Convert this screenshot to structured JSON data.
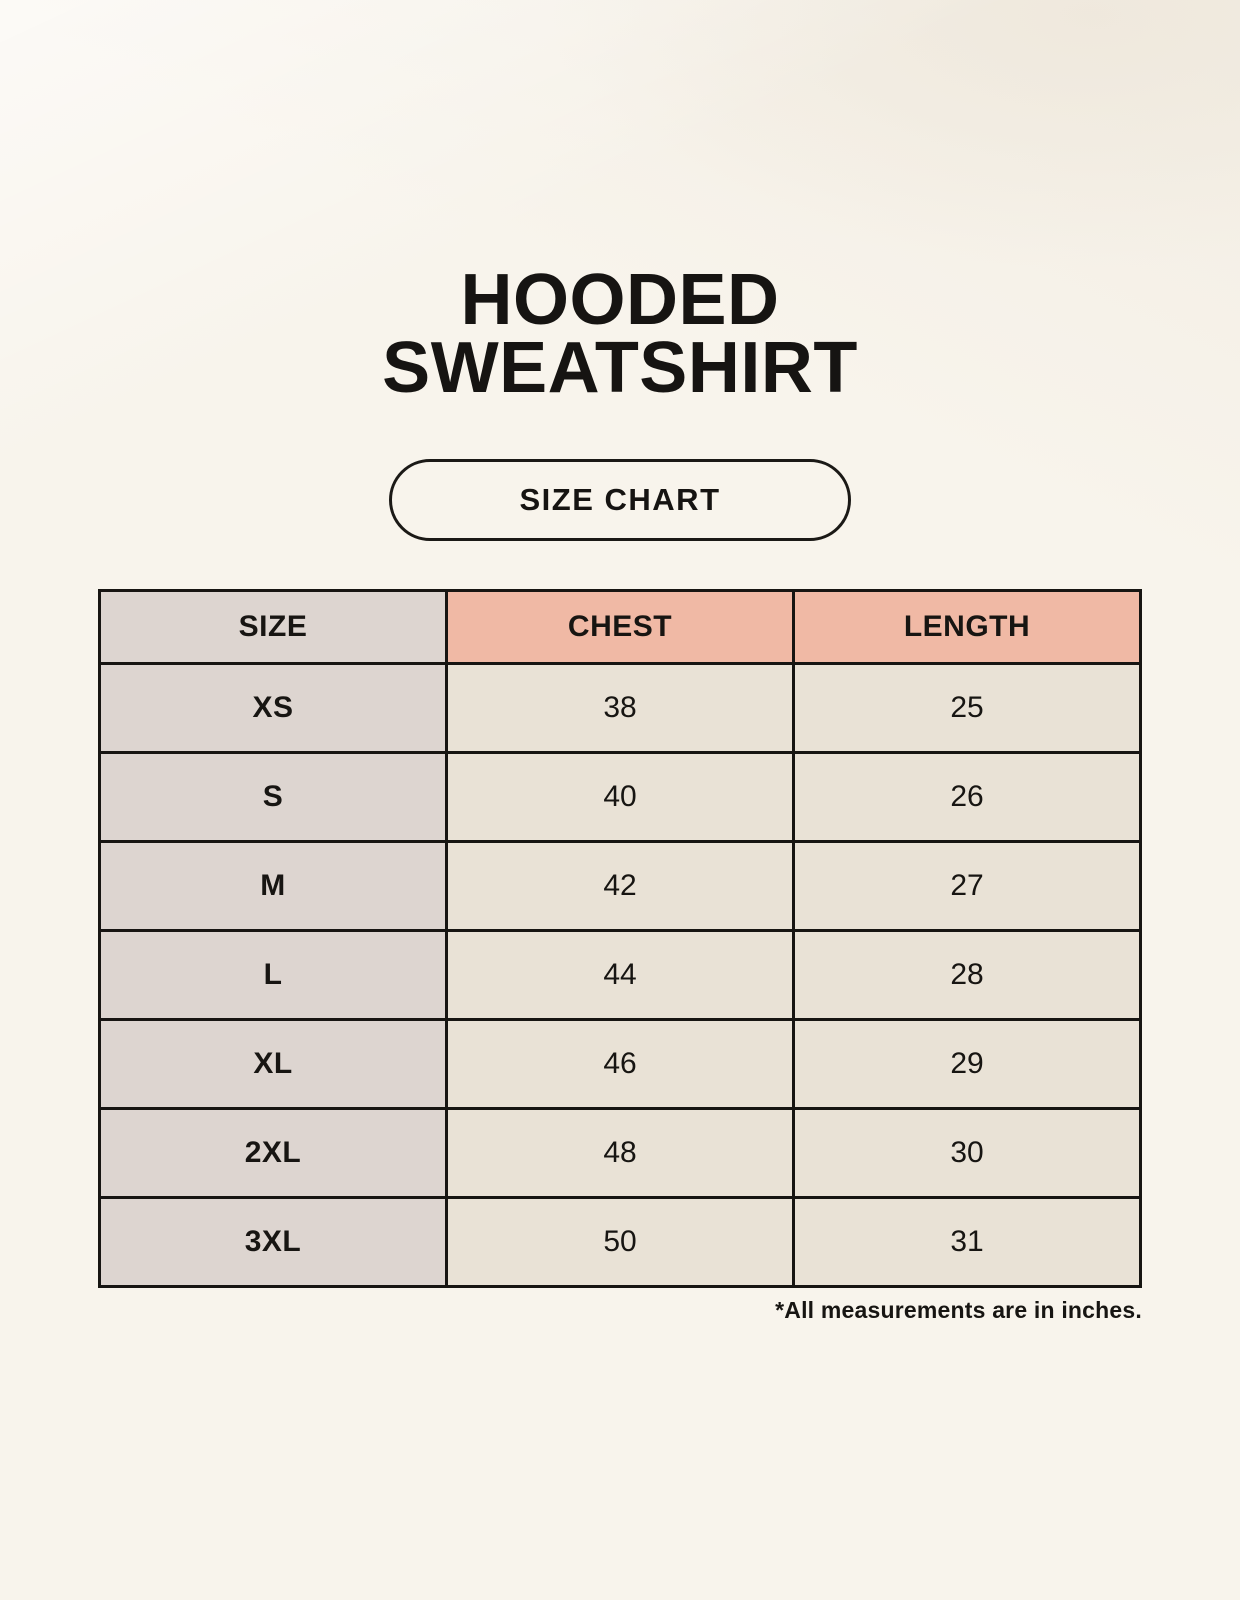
{
  "header": {
    "title_line1": "HOODED",
    "title_line2": "SWEATSHIRT",
    "button_label": "SIZE CHART"
  },
  "table": {
    "columns": [
      "SIZE",
      "CHEST",
      "LENGTH"
    ],
    "rows": [
      [
        "XS",
        "38",
        "25"
      ],
      [
        "S",
        "40",
        "26"
      ],
      [
        "M",
        "42",
        "27"
      ],
      [
        "L",
        "44",
        "28"
      ],
      [
        "XL",
        "46",
        "29"
      ],
      [
        "2XL",
        "48",
        "30"
      ],
      [
        "3XL",
        "50",
        "31"
      ]
    ],
    "footnote": "*All measurements are in inches."
  },
  "colors": {
    "page_background": "#f8f4ec",
    "accent_salmon": "#f0b9a5",
    "size_column_gray": "#ddd5d0",
    "cell_cream": "#e9e2d6",
    "border_black": "#171512"
  },
  "chart_data": {
    "type": "table",
    "title": "HOODED SWEATSHIRT",
    "subtitle": "SIZE CHART",
    "columns": [
      "SIZE",
      "CHEST",
      "LENGTH"
    ],
    "rows": [
      {
        "size": "XS",
        "chest": 38,
        "length": 25
      },
      {
        "size": "S",
        "chest": 40,
        "length": 26
      },
      {
        "size": "M",
        "chest": 42,
        "length": 27
      },
      {
        "size": "L",
        "chest": 44,
        "length": 28
      },
      {
        "size": "XL",
        "chest": 46,
        "length": 29
      },
      {
        "size": "2XL",
        "chest": 48,
        "length": 30
      },
      {
        "size": "3XL",
        "chest": 50,
        "length": 31
      }
    ],
    "units": "inches",
    "annotations": [
      "*All measurements are in inches."
    ]
  }
}
